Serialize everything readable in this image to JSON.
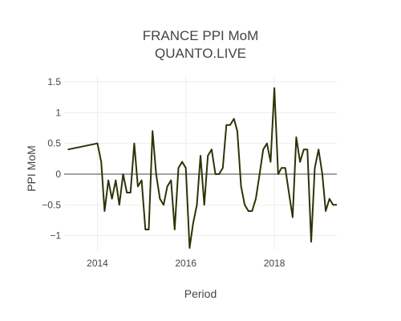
{
  "chart_data": {
    "type": "line",
    "title_lines": [
      "FRANCE PPI MoM",
      "QUANTO.LIVE"
    ],
    "xlabel": "Period",
    "ylabel": "PPI MoM",
    "xlim": [
      "2013-04-01",
      "2019-06-01"
    ],
    "ylim": [
      -1.2,
      1.5
    ],
    "x_ticks": [
      "2014",
      "2016",
      "2018"
    ],
    "y_ticks": [
      "1.5",
      "1",
      "0.5",
      "0",
      "−0.5",
      "−1"
    ],
    "grid": true,
    "legend": "none",
    "line_color": "#2e3306",
    "series": [
      {
        "x": [
          "2013-05-01",
          "2014-01-01",
          "2014-02-01",
          "2014-03-01",
          "2014-04-01",
          "2014-05-01",
          "2014-06-01",
          "2014-07-01",
          "2014-08-01",
          "2014-09-01",
          "2014-10-01",
          "2014-11-01",
          "2014-12-01",
          "2015-01-01",
          "2015-02-01",
          "2015-03-01",
          "2015-04-01",
          "2015-05-01",
          "2015-06-01",
          "2015-07-01",
          "2015-08-01",
          "2015-09-01",
          "2015-10-01",
          "2015-11-01",
          "2015-12-01",
          "2016-01-01",
          "2016-02-01",
          "2016-03-01",
          "2016-04-01",
          "2016-05-01",
          "2016-06-01",
          "2016-07-01",
          "2016-08-01",
          "2016-09-01",
          "2016-10-01",
          "2016-11-01",
          "2016-12-01",
          "2017-01-01",
          "2017-02-01",
          "2017-03-01",
          "2017-04-01",
          "2017-05-01",
          "2017-06-01",
          "2017-07-01",
          "2017-08-01",
          "2017-09-01",
          "2017-10-01",
          "2017-11-01",
          "2017-12-01",
          "2018-01-01",
          "2018-02-01",
          "2018-03-01",
          "2018-04-01",
          "2018-05-01",
          "2018-06-01",
          "2018-07-01",
          "2018-08-01",
          "2018-09-01",
          "2018-10-01",
          "2018-11-01",
          "2018-12-01",
          "2019-01-01",
          "2019-02-01",
          "2019-03-01",
          "2019-04-01",
          "2019-05-01",
          "2019-06-01"
        ],
        "y": [
          0.4,
          0.5,
          0.2,
          -0.6,
          -0.1,
          -0.4,
          -0.1,
          -0.5,
          0.0,
          -0.3,
          -0.3,
          0.5,
          -0.2,
          -0.1,
          -0.9,
          -0.9,
          0.7,
          0.0,
          -0.4,
          -0.5,
          -0.2,
          -0.1,
          -0.9,
          0.1,
          0.2,
          0.1,
          -1.2,
          -0.8,
          -0.5,
          0.3,
          -0.5,
          0.3,
          0.4,
          0.0,
          0.0,
          0.1,
          0.8,
          0.8,
          0.9,
          0.7,
          -0.2,
          -0.5,
          -0.6,
          -0.6,
          -0.4,
          0.0,
          0.4,
          0.5,
          0.2,
          1.4,
          0.0,
          0.1,
          0.1,
          -0.3,
          -0.7,
          0.6,
          0.2,
          0.4,
          0.4,
          -1.1,
          0.1,
          0.4,
          0.0,
          -0.6,
          -0.4,
          -0.5,
          -0.5
        ]
      }
    ]
  }
}
